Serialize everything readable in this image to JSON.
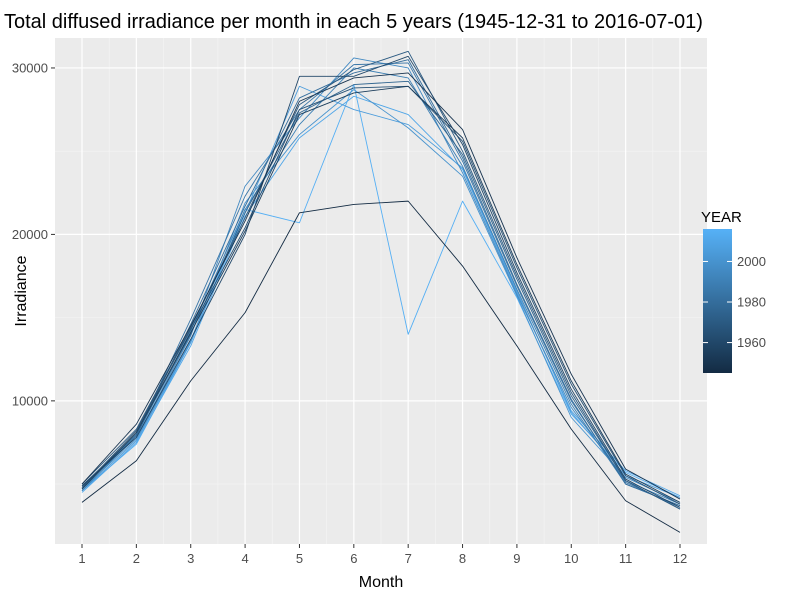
{
  "chart_data": {
    "type": "line",
    "title": "Total diffused irradiance per month in each 5 years (1945-12-31 to 2016-07-01)",
    "xlabel": "Month",
    "ylabel": "Irradiance",
    "x": [
      1,
      2,
      3,
      4,
      5,
      6,
      7,
      8,
      9,
      10,
      11,
      12
    ],
    "x_tick_labels": [
      "1",
      "2",
      "3",
      "4",
      "5",
      "6",
      "7",
      "8",
      "9",
      "10",
      "11",
      "12"
    ],
    "xlim": [
      1,
      12
    ],
    "ylim": [
      1400,
      31800
    ],
    "y_ticks": [
      10000,
      20000,
      30000
    ],
    "y_tick_labels": [
      "10000",
      "20000",
      "30000"
    ],
    "grid": true,
    "legend": {
      "title": "YEAR",
      "position": "right",
      "type": "colorbar",
      "range": [
        1945,
        2016
      ],
      "breaks": [
        1960,
        1980,
        2000
      ],
      "break_labels": [
        "1960",
        "1980",
        "2000"
      ],
      "low_color": "#132b43",
      "high_color": "#56b1f7"
    },
    "series": [
      {
        "year": 1945,
        "values": [
          3900,
          6400,
          11200,
          15300,
          21300,
          21800,
          22000,
          18100,
          13300,
          8300,
          4000,
          2100
        ]
      },
      {
        "year": 1950,
        "values": [
          5000,
          8600,
          14500,
          20800,
          28000,
          29400,
          29700,
          26300,
          18600,
          11600,
          5900,
          4100
        ]
      },
      {
        "year": 1955,
        "values": [
          4700,
          8100,
          14100,
          20200,
          27200,
          28500,
          28900,
          25800,
          18200,
          11200,
          5600,
          3900
        ]
      },
      {
        "year": 1960,
        "values": [
          4900,
          7800,
          13700,
          20000,
          29500,
          29500,
          30700,
          25400,
          17700,
          10700,
          5300,
          3600
        ]
      },
      {
        "year": 1965,
        "values": [
          4800,
          8200,
          14300,
          20400,
          27500,
          28800,
          28900,
          25600,
          18000,
          11000,
          5500,
          3800
        ]
      },
      {
        "year": 1970,
        "values": [
          5000,
          8300,
          14400,
          21000,
          27800,
          29900,
          31000,
          25000,
          17500,
          10500,
          5200,
          3500
        ]
      },
      {
        "year": 1975,
        "values": [
          4900,
          8000,
          14000,
          21300,
          27300,
          29000,
          29200,
          24800,
          17300,
          10300,
          5200,
          3500
        ]
      },
      {
        "year": 1980,
        "values": [
          4800,
          7900,
          14600,
          21700,
          28200,
          29700,
          30500,
          24600,
          17000,
          10100,
          5000,
          3700
        ]
      },
      {
        "year": 1985,
        "values": [
          4700,
          8000,
          14900,
          22300,
          27500,
          30200,
          30300,
          24400,
          16900,
          10000,
          5100,
          3600
        ]
      },
      {
        "year": 1990,
        "values": [
          4600,
          7900,
          14200,
          21500,
          26600,
          30000,
          29400,
          24100,
          16700,
          9800,
          5000,
          3700
        ]
      },
      {
        "year": 1995,
        "values": [
          4800,
          7800,
          13900,
          22900,
          27000,
          30600,
          30000,
          23700,
          16400,
          9600,
          5200,
          3800
        ]
      },
      {
        "year": 2000,
        "values": [
          4700,
          7700,
          13600,
          21900,
          26000,
          28700,
          26400,
          23500,
          16300,
          9000,
          5400,
          3900
        ]
      },
      {
        "year": 2005,
        "values": [
          4600,
          7600,
          13500,
          21300,
          28900,
          27500,
          26600,
          24000,
          16600,
          9300,
          5500,
          4200
        ]
      },
      {
        "year": 2010,
        "values": [
          4500,
          7500,
          13300,
          21100,
          25800,
          28300,
          27200,
          23900,
          16500,
          9400,
          5800,
          4300
        ]
      },
      {
        "year": 2015,
        "values": [
          4600,
          7400,
          13500,
          21500,
          20700,
          29000,
          14000,
          22000,
          16200,
          9200,
          5700,
          4200
        ]
      }
    ]
  }
}
